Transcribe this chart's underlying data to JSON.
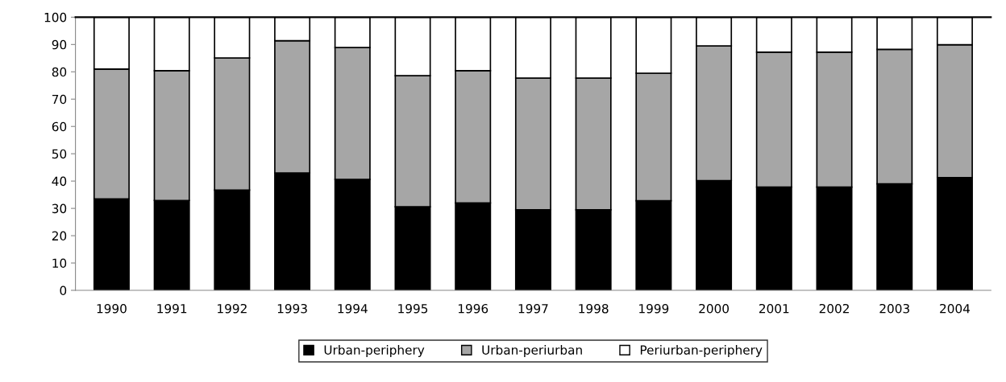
{
  "chart_data": {
    "type": "bar",
    "stacked": true,
    "categories": [
      "1990",
      "1991",
      "1992",
      "1993",
      "1994",
      "1995",
      "1996",
      "1997",
      "1998",
      "1999",
      "2000",
      "2001",
      "2002",
      "2003",
      "2004"
    ],
    "series": [
      {
        "name": "Urban-periphery",
        "color": "#000000",
        "values": [
          33.5,
          32.9,
          36.7,
          43.0,
          40.6,
          30.6,
          32.0,
          29.5,
          29.5,
          32.8,
          40.2,
          37.8,
          37.8,
          39.0,
          41.3
        ]
      },
      {
        "name": "Urban-periurban",
        "color": "#a6a6a6",
        "values": [
          47.5,
          47.5,
          48.4,
          48.4,
          48.3,
          48.0,
          48.4,
          48.2,
          48.2,
          46.7,
          49.3,
          49.4,
          49.4,
          49.2,
          48.6
        ]
      },
      {
        "name": "Periurban-periphery",
        "color": "#ffffff",
        "values": [
          19.0,
          19.6,
          14.9,
          8.6,
          11.1,
          21.4,
          19.6,
          22.3,
          22.3,
          20.5,
          10.5,
          12.8,
          12.8,
          11.8,
          10.1
        ]
      }
    ],
    "ylim": [
      0,
      100
    ],
    "yticks": [
      0,
      10,
      20,
      30,
      40,
      50,
      60,
      70,
      80,
      90,
      100
    ],
    "grid": false,
    "legend": "bottom"
  }
}
